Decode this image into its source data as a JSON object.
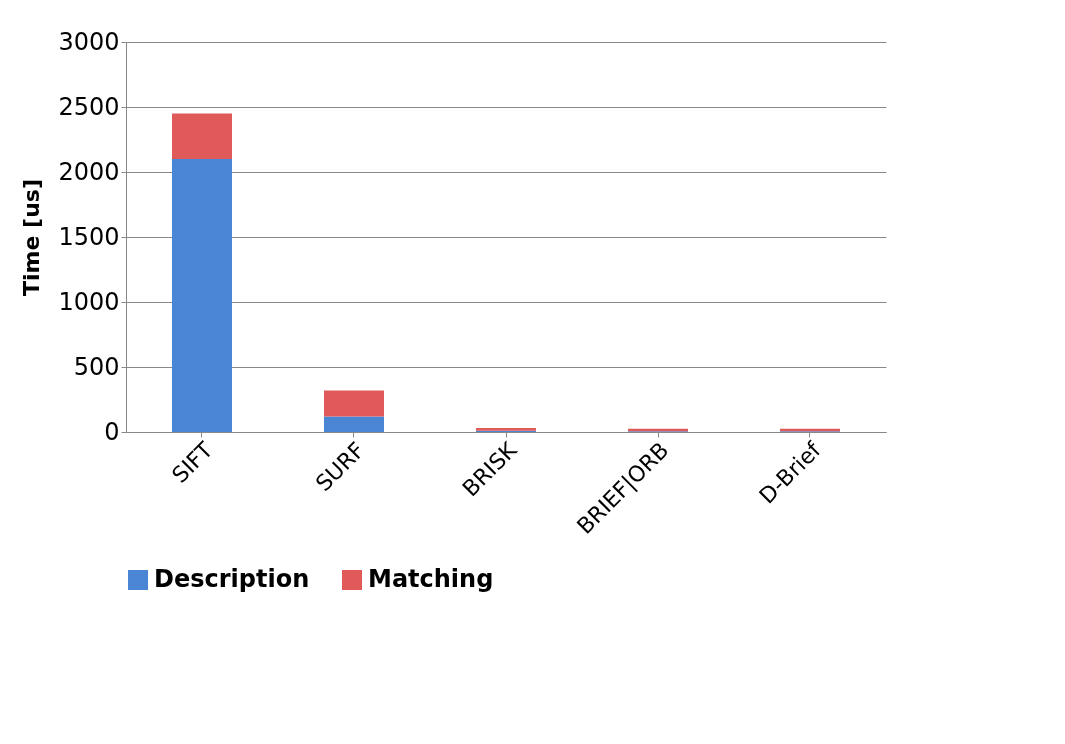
{
  "chart_data": {
    "type": "bar",
    "stacked": true,
    "ylabel": "Time [us]",
    "categories": [
      "SIFT",
      "SURF",
      "BRISK",
      "BRIEF|ORB",
      "D-Brief"
    ],
    "series": [
      {
        "name": "Description",
        "color": "#4a86d4",
        "values": [
          2100,
          120,
          10,
          5,
          5
        ]
      },
      {
        "name": "Matching",
        "color": "#e05a5a",
        "values": [
          350,
          200,
          20,
          20,
          20
        ]
      }
    ],
    "ylim": [
      0,
      3000
    ],
    "yticks": [
      0,
      500,
      1000,
      1500,
      2000,
      2500,
      3000
    ],
    "grid": "y",
    "legend": "bottom"
  }
}
